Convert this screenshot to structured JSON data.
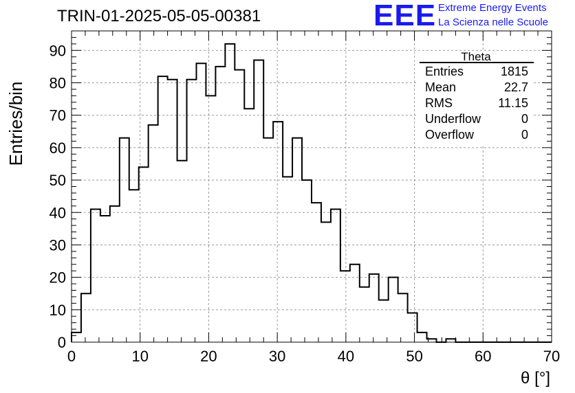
{
  "header": {
    "run_title": "TRIN-01-2025-05-05-00381",
    "logo_text": "EEE",
    "logo_line1": "Extreme Energy Events",
    "logo_line2": "La Scienza nelle Scuole",
    "logo_color": "#1a1aee"
  },
  "stats_box": {
    "title": "Theta",
    "rows": [
      {
        "label": "Entries",
        "value": "1815"
      },
      {
        "label": "Mean",
        "value": "22.7"
      },
      {
        "label": "RMS",
        "value": "11.15"
      },
      {
        "label": "Underflow",
        "value": "0"
      },
      {
        "label": "Overflow",
        "value": "0"
      }
    ]
  },
  "chart_data": {
    "type": "histogram",
    "xlabel": "θ [°]",
    "ylabel": "Entries/bin",
    "xlim": [
      0,
      70
    ],
    "ylim": [
      0,
      96
    ],
    "xticks": [
      0,
      10,
      20,
      30,
      40,
      50,
      60,
      70
    ],
    "yticks": [
      0,
      10,
      20,
      30,
      40,
      50,
      60,
      70,
      80,
      90
    ],
    "grid": true,
    "bin_width": 1.4,
    "bin_edges_start": 0,
    "values": [
      3,
      15,
      41,
      39,
      42,
      63,
      47,
      54,
      67,
      82,
      81,
      56,
      81,
      86,
      76,
      85,
      92,
      84,
      72,
      87,
      63,
      68,
      51,
      63,
      50,
      43,
      37,
      41,
      22,
      24,
      17,
      21,
      13,
      20,
      15,
      9,
      3,
      1,
      0,
      1,
      0,
      0,
      0,
      0,
      0,
      0,
      0,
      0,
      0,
      0
    ],
    "line_color": "#000000"
  }
}
